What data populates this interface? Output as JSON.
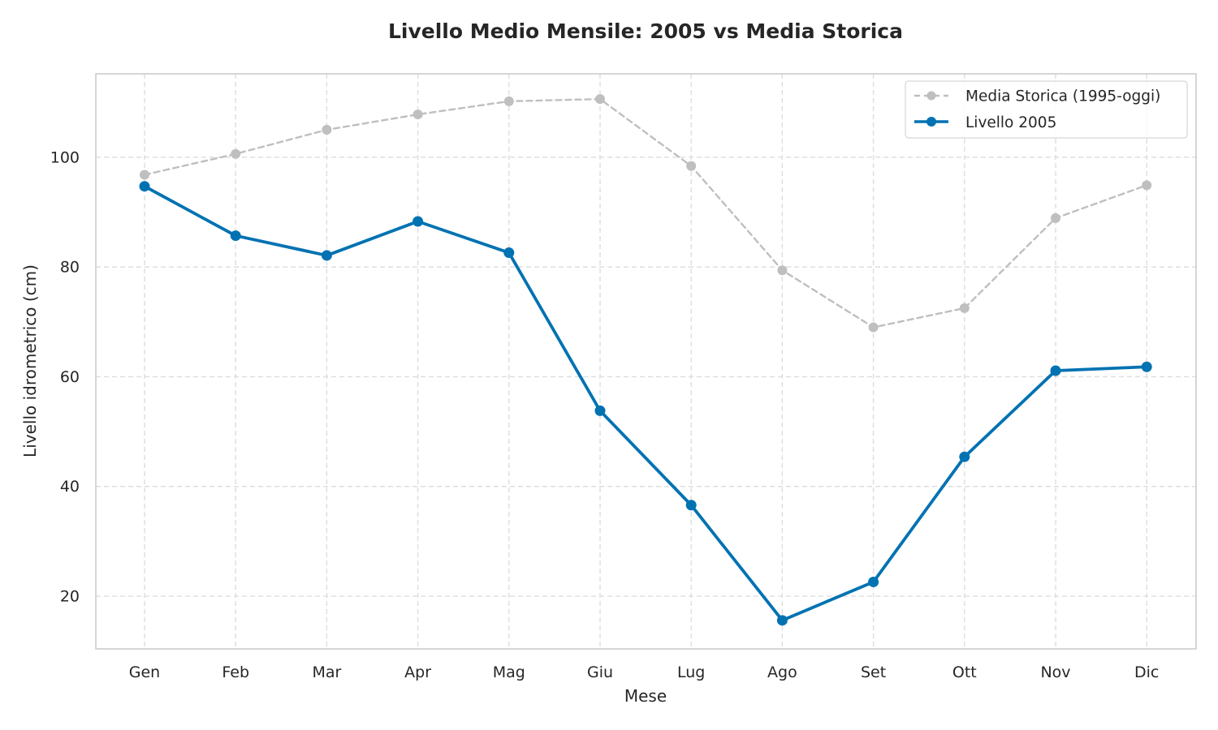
{
  "chart_data": {
    "type": "line",
    "title": "Livello Medio Mensile: 2005 vs Media Storica",
    "xlabel": "Mese",
    "ylabel": "Livello idrometrico (cm)",
    "categories": [
      "Gen",
      "Feb",
      "Mar",
      "Apr",
      "Mag",
      "Giu",
      "Lug",
      "Ago",
      "Set",
      "Ott",
      "Nov",
      "Dic"
    ],
    "ylim": [
      10.4,
      115.2
    ],
    "yticks": [
      20,
      40,
      60,
      80,
      100
    ],
    "grid": true,
    "legend_position": "top-right",
    "series": [
      {
        "name": "Media Storica (1995-oggi)",
        "color": "#bfbfbf",
        "style": "dashed",
        "values": [
          96.8,
          100.6,
          105.0,
          107.8,
          110.2,
          110.6,
          98.4,
          79.4,
          69.0,
          72.5,
          88.9,
          94.9
        ]
      },
      {
        "name": "Livello 2005",
        "color": "#0072b2",
        "style": "solid",
        "values": [
          94.7,
          85.7,
          82.1,
          88.3,
          82.6,
          53.8,
          36.6,
          15.6,
          22.6,
          45.4,
          61.1,
          61.8
        ]
      }
    ]
  }
}
